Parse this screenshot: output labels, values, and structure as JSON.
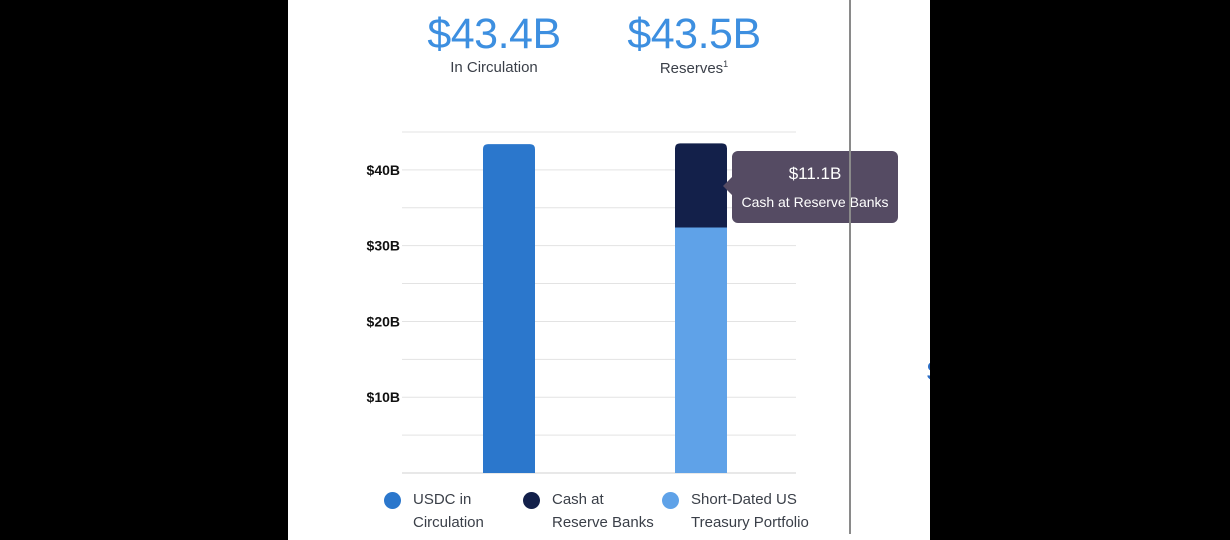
{
  "stats": {
    "circulation": {
      "value": "$43.4B",
      "label": "In Circulation"
    },
    "reserves": {
      "value": "$43.5B",
      "label": "Reserves",
      "footnote": "1"
    }
  },
  "tooltip": {
    "value": "$11.1B",
    "label": "Cash at Reserve Banks"
  },
  "colors": {
    "usdc": "#2b77cc",
    "cash": "#13204a",
    "treasury": "#5fa2e8",
    "stat_text": "#3d8fe0",
    "tooltip_bg": "#554b63"
  },
  "legend": [
    {
      "line1": "USDC in",
      "line2": "Circulation",
      "color": "#2b77cc"
    },
    {
      "line1": "Cash at",
      "line2": "Reserve Banks",
      "color": "#13204a"
    },
    {
      "line1": "Short-Dated US",
      "line2": "Treasury Portfolio",
      "color": "#5fa2e8"
    }
  ],
  "chart_data": {
    "type": "bar",
    "stacked": true,
    "unit": "$B",
    "ylim": [
      0,
      45
    ],
    "yticks": [
      {
        "value": 10,
        "label": "$10B"
      },
      {
        "value": 20,
        "label": "$20B"
      },
      {
        "value": 30,
        "label": "$30B"
      },
      {
        "value": 40,
        "label": "$40B"
      }
    ],
    "gridlines_every": 5,
    "grid": true,
    "legend_position": "bottom",
    "bars": [
      {
        "segments": [
          {
            "series": "USDC in Circulation",
            "value": 43.4,
            "color": "#2b77cc"
          }
        ]
      },
      {
        "segments": [
          {
            "series": "Short-Dated US Treasury Portfolio",
            "value": 32.4,
            "color": "#5fa2e8"
          },
          {
            "series": "Cash at Reserve Banks",
            "value": 11.1,
            "color": "#13204a"
          }
        ]
      }
    ]
  }
}
